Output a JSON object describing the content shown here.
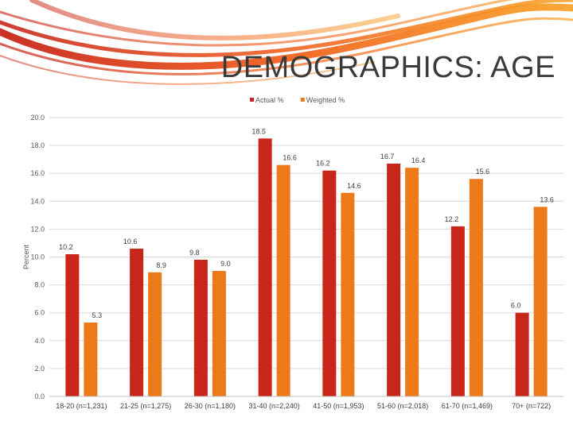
{
  "slide": {
    "title": "DEMOGRAPHICS: AGE"
  },
  "chart_data": {
    "type": "bar",
    "title": "",
    "xlabel": "",
    "ylabel": "Percent",
    "ylim": [
      0,
      20
    ],
    "yticks": [
      "0.0",
      "2.0",
      "4.0",
      "6.0",
      "8.0",
      "10.0",
      "12.0",
      "14.0",
      "16.0",
      "18.0",
      "20.0"
    ],
    "legend_position": "top-center",
    "grid": true,
    "categories": [
      "18-20 (n=1,231)",
      "21-25 (n=1,275)",
      "26-30 (n=1,180)",
      "31-40 (n=2,240)",
      "41-50 (n=1,953)",
      "51-60 (n=2,018)",
      "61-70 (n=1,469)",
      "70+ (n=722)"
    ],
    "series": [
      {
        "name": "Actual %",
        "color": "#c8261a",
        "values": [
          10.2,
          10.6,
          9.8,
          18.5,
          16.2,
          16.7,
          12.2,
          6.0
        ],
        "labels": [
          "10.2",
          "10.6",
          "9.8",
          "18.5",
          "16.2",
          "16.7",
          "12.2",
          "6.0"
        ]
      },
      {
        "name": "Weighted %",
        "color": "#ec7a18",
        "values": [
          5.3,
          8.9,
          9.0,
          16.6,
          14.6,
          16.4,
          15.6,
          13.6
        ],
        "labels": [
          "5.3",
          "8.9",
          "9.0",
          "16.6",
          "14.6",
          "16.4",
          "15.6",
          "13.6"
        ]
      }
    ]
  }
}
